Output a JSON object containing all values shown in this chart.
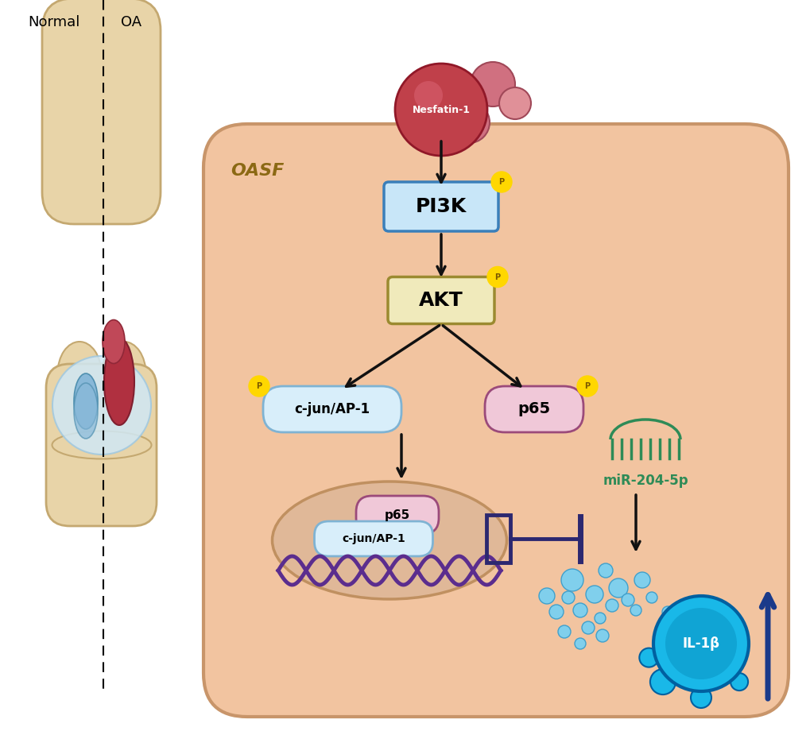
{
  "bg_color": "#ffffff",
  "cell_color": "#F2C4A0",
  "cell_edge_color": "#C8956A",
  "oasf_text": "OASF",
  "oasf_color": "#8B6914",
  "normal_text": "Normal",
  "oa_text": "OA",
  "nesfatin_text": "Nesfatin-1",
  "pi3k_text": "PI3K",
  "akt_text": "AKT",
  "cjun_text": "c-jun/AP-1",
  "p65_text": "p65",
  "mir_text": "miR-204-5p",
  "il1b_text": "IL-1β",
  "pi3k_box_facecolor": "#C8E6F8",
  "pi3k_box_edgecolor": "#3A7FBA",
  "akt_box_facecolor": "#F0EABB",
  "akt_box_edgecolor": "#9B8A30",
  "cjun_box_facecolor": "#D8EEFA",
  "cjun_box_edgecolor": "#7FB3D3",
  "p65_box_facecolor": "#F0C8D8",
  "p65_box_edgecolor": "#9B4A7A",
  "nucleus_color": "#E0B898",
  "nucleus_edge_color": "#C09060",
  "dna_color": "#5B2D8E",
  "p65n_facecolor": "#F0C8D8",
  "p65n_edgecolor": "#9B4A7A",
  "cjunn_facecolor": "#D8EEFA",
  "cjunn_edgecolor": "#7FB3D3",
  "arrow_color": "#111111",
  "inhibit_color": "#2C2870",
  "mir_color": "#2E8B57",
  "il1b_color": "#19B8E8",
  "il1b_dark": "#0080B0",
  "il1b_edge": "#0060A0",
  "up_arrow_color": "#1a3a8a",
  "nf_main_color": "#C0404A",
  "nf_mid_color": "#D07080",
  "nf_light_color": "#E8A0A8",
  "bubble_color": "#80CFEC",
  "bubble_edge": "#40A0CC",
  "p_circle_color": "#FFD700",
  "p_text_color": "#7A5800"
}
